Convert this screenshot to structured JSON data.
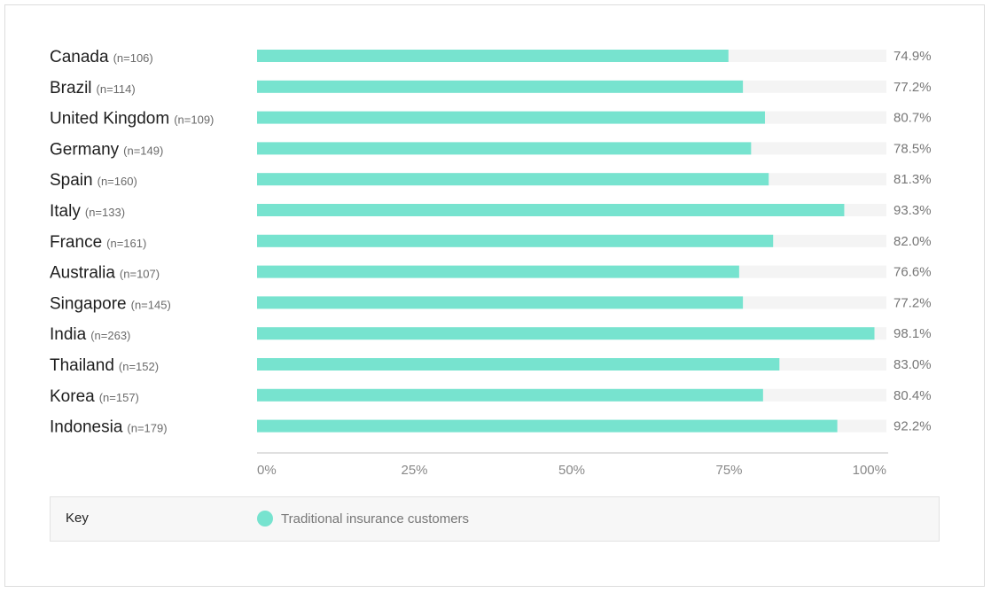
{
  "chart_data": {
    "type": "bar",
    "orientation": "horizontal",
    "categories": [
      "Canada",
      "Brazil",
      "United Kingdom",
      "Germany",
      "Spain",
      "Italy",
      "France",
      "Australia",
      "Singapore",
      "India",
      "Thailand",
      "Korea",
      "Indonesia"
    ],
    "sample_sizes": [
      "(n=106)",
      "(n=114)",
      "(n=109)",
      "(n=149)",
      "(n=160)",
      "(n=133)",
      "(n=161)",
      "(n=107)",
      "(n=145)",
      "(n=263)",
      "(n=152)",
      "(n=157)",
      "(n=179)"
    ],
    "series": [
      {
        "name": "Traditional insurance customers",
        "values": [
          74.9,
          77.2,
          80.7,
          78.5,
          81.3,
          93.3,
          82.0,
          76.6,
          77.2,
          98.1,
          83.0,
          80.4,
          92.2
        ],
        "labels": [
          "74.9%",
          "77.2%",
          "80.7%",
          "78.5%",
          "81.3%",
          "93.3%",
          "82.0%",
          "76.6%",
          "77.2%",
          "98.1%",
          "83.0%",
          "80.4%",
          "92.2%"
        ]
      }
    ],
    "xlim": [
      0,
      100
    ],
    "x_ticks": [
      0,
      25,
      50,
      75,
      100
    ],
    "x_tick_labels": [
      "0%",
      "25%",
      "50%",
      "75%",
      "100%"
    ],
    "grid": false,
    "legend_position": "bottom"
  },
  "legend": {
    "key_label": "Key"
  },
  "colors": {
    "bar": "#77e3cf",
    "track": "#f4f4f4",
    "axis": "#d6d6d6"
  }
}
